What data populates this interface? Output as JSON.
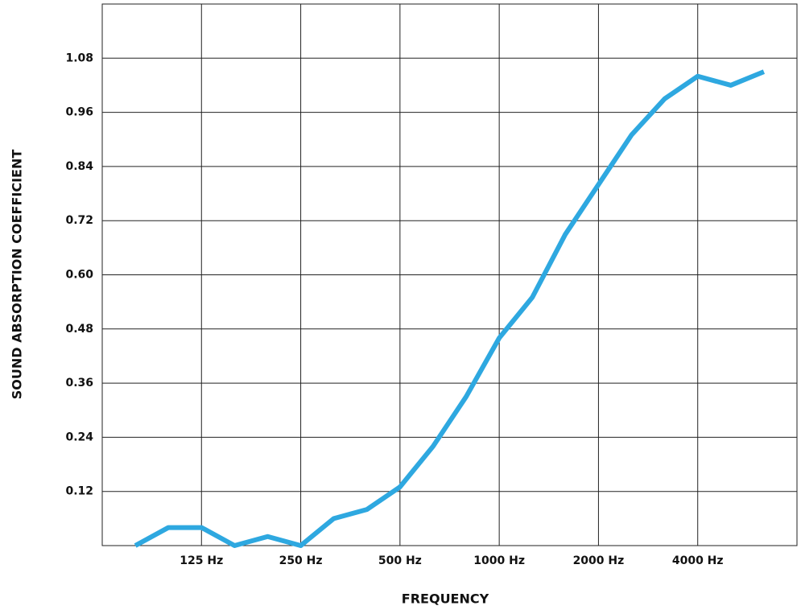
{
  "chart_data": {
    "type": "line",
    "x_label": "FREQUENCY",
    "y_label": "SOUND ABSORPTION COEFFICIENT",
    "categories": [
      null,
      null,
      "125 Hz",
      null,
      null,
      "250 Hz",
      null,
      null,
      "500 Hz",
      null,
      null,
      "1000 Hz",
      null,
      null,
      "2000 Hz",
      null,
      null,
      "4000 Hz",
      null,
      null
    ],
    "values": [
      0.0,
      0.04,
      0.04,
      0.0,
      0.02,
      0.0,
      0.06,
      0.08,
      0.13,
      0.22,
      0.33,
      0.46,
      0.55,
      0.69,
      0.8,
      0.91,
      0.99,
      1.04,
      1.02,
      1.05
    ],
    "color": "#2ea8e0",
    "ylim": [
      0,
      1.2
    ],
    "yticks": [
      0.12,
      0.24,
      0.36,
      0.48,
      {
        "value": 0.6,
        "label": "0.60"
      },
      0.72,
      0.84,
      0.96,
      1.08
    ],
    "grid": true
  }
}
